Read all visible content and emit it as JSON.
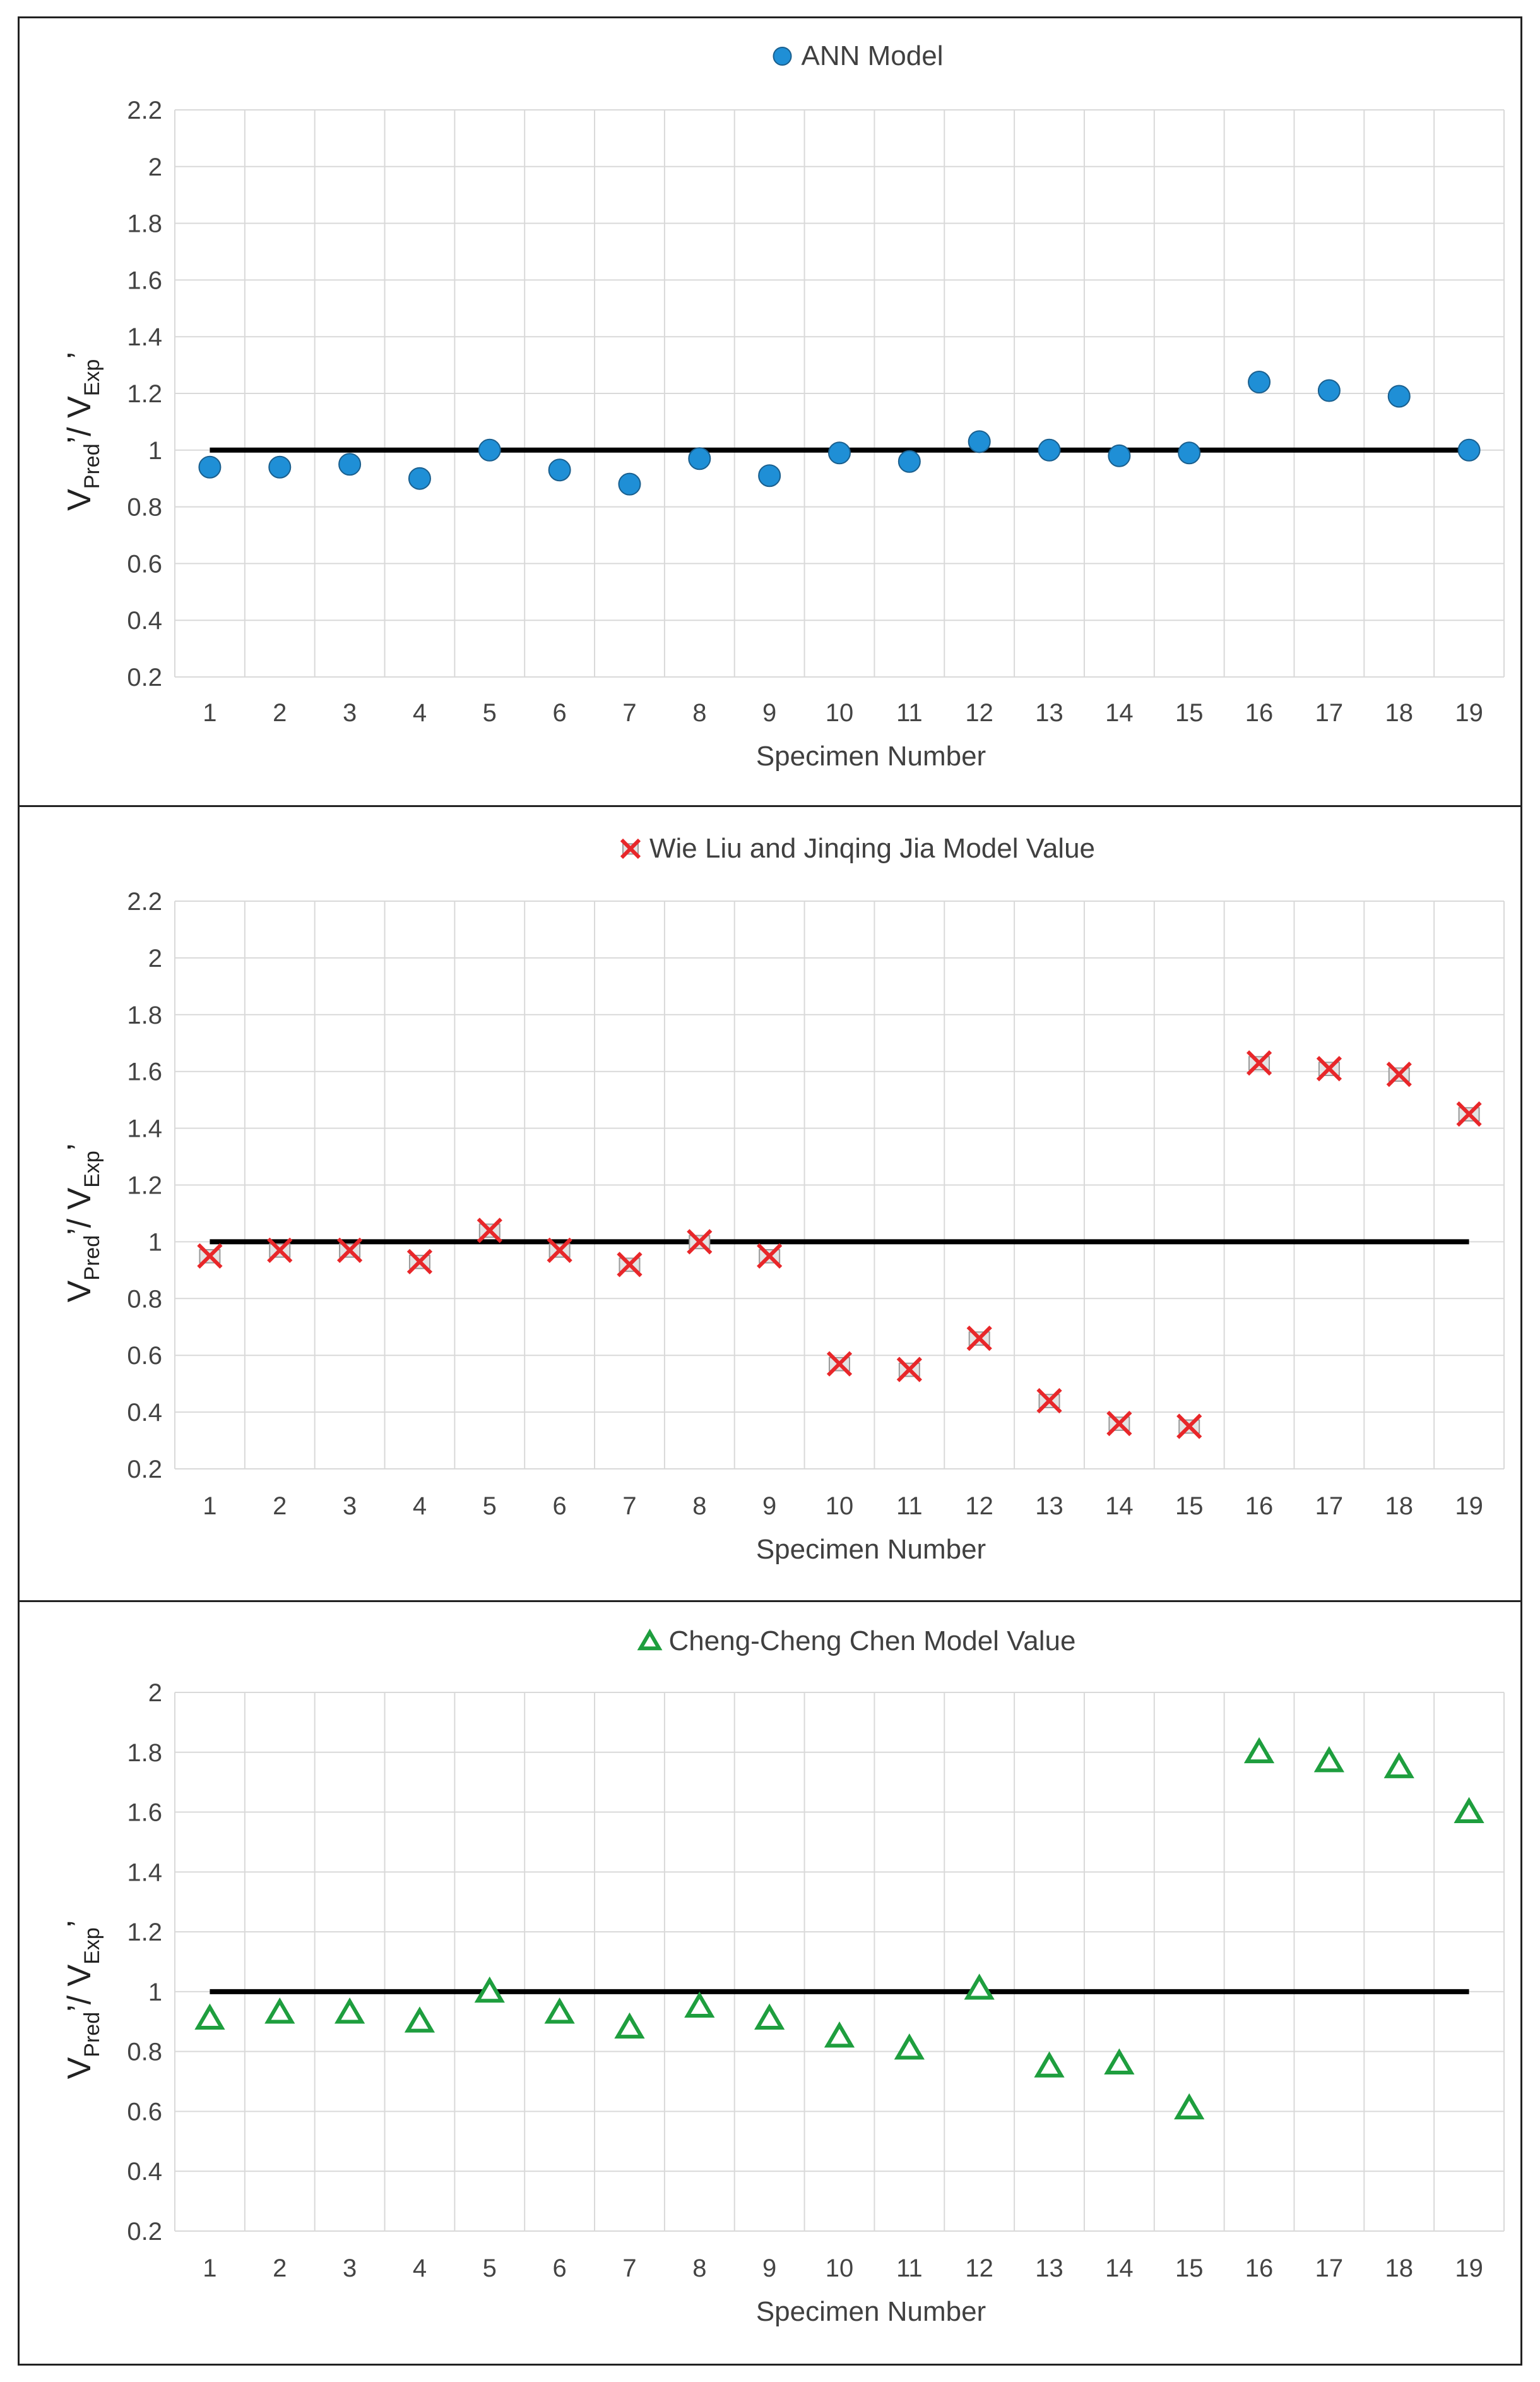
{
  "chart_data": [
    {
      "type": "scatter",
      "legend": "ANN Model",
      "marker": "circle",
      "color": "#1f8fd6",
      "stroke": "#1a5f8e",
      "xlabel": "Specimen Number",
      "ylabel_main": "V",
      "ylabel_sub1": "Pred",
      "ylabel_mid": "/ V",
      "ylabel_sub2": "Exp",
      "ylim": [
        0.2,
        2.2
      ],
      "yticks": [
        0.2,
        0.4,
        0.6,
        0.8,
        1,
        1.2,
        1.4,
        1.6,
        1.8,
        2,
        2.2
      ],
      "x": [
        1,
        2,
        3,
        4,
        5,
        6,
        7,
        8,
        9,
        10,
        11,
        12,
        13,
        14,
        15,
        16,
        17,
        18,
        19
      ],
      "values": [
        0.94,
        0.94,
        0.95,
        0.9,
        1.0,
        0.93,
        0.88,
        0.97,
        0.91,
        0.99,
        0.96,
        1.03,
        1.0,
        0.98,
        0.99,
        1.24,
        1.21,
        1.19,
        1.0
      ],
      "reference_line": 1
    },
    {
      "type": "scatter",
      "legend": "Wie Liu and Jinqing Jia Model Value",
      "marker": "cross",
      "color": "#e8272a",
      "xlabel": "Specimen Number",
      "ylabel_main": "V",
      "ylabel_sub1": "Pred",
      "ylabel_mid": "/ V",
      "ylabel_sub2": "Exp",
      "ylim": [
        0.2,
        2.2
      ],
      "yticks": [
        0.2,
        0.4,
        0.6,
        0.8,
        1,
        1.2,
        1.4,
        1.6,
        1.8,
        2,
        2.2
      ],
      "x": [
        1,
        2,
        3,
        4,
        5,
        6,
        7,
        8,
        9,
        10,
        11,
        12,
        13,
        14,
        15,
        16,
        17,
        18,
        19
      ],
      "values": [
        0.95,
        0.97,
        0.97,
        0.93,
        1.04,
        0.97,
        0.92,
        1.0,
        0.95,
        0.57,
        0.55,
        0.66,
        0.44,
        0.36,
        0.35,
        1.63,
        1.61,
        1.59,
        1.45
      ],
      "reference_line": 1
    },
    {
      "type": "scatter",
      "legend": "Cheng-Cheng Chen Model Value",
      "marker": "triangle",
      "color": "#1e9e3e",
      "xlabel": "Specimen Number",
      "ylabel_main": "V",
      "ylabel_sub1": "Pred",
      "ylabel_mid": "/ V",
      "ylabel_sub2": "Exp",
      "ylim": [
        0.2,
        2.0
      ],
      "yticks": [
        0.2,
        0.4,
        0.6,
        0.8,
        1,
        1.2,
        1.4,
        1.6,
        1.8,
        2
      ],
      "x": [
        1,
        2,
        3,
        4,
        5,
        6,
        7,
        8,
        9,
        10,
        11,
        12,
        13,
        14,
        15,
        16,
        17,
        18,
        19
      ],
      "values": [
        0.91,
        0.93,
        0.93,
        0.9,
        1.0,
        0.93,
        0.88,
        0.95,
        0.91,
        0.85,
        0.81,
        1.01,
        0.75,
        0.76,
        0.61,
        1.8,
        1.77,
        1.75,
        1.6
      ],
      "reference_line": 1
    }
  ]
}
